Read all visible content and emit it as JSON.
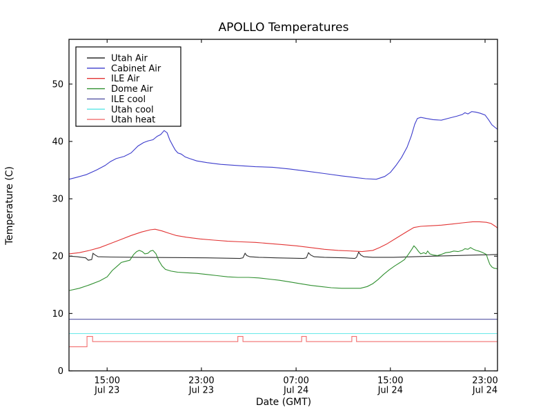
{
  "figure": {
    "background": "#ffffff",
    "spine_color": "#1a1a1a"
  },
  "chart_data": {
    "type": "line",
    "title": "APOLLO Temperatures",
    "xlabel": "Date (GMT)",
    "ylabel": "Temperature (C)",
    "ylim": [
      0,
      57.8
    ],
    "y_ticks": [
      0,
      10,
      20,
      30,
      40,
      50
    ],
    "grid": false,
    "legend_position": "upper left",
    "x_unit": "fraction of visible time span (approx 11:50 Jul 23 GMT to 23:50 Jul 24 GMT, ~36 hours)",
    "x_ticks": [
      {
        "pos": 0.089,
        "time": "15:00",
        "date": "Jul 23"
      },
      {
        "pos": 0.309,
        "time": "23:00",
        "date": "Jul 23"
      },
      {
        "pos": 0.53,
        "time": "07:00",
        "date": "Jul 24"
      },
      {
        "pos": 0.75,
        "time": "15:00",
        "date": "Jul 24"
      },
      {
        "pos": 0.971,
        "time": "23:00",
        "date": "Jul 24"
      }
    ],
    "series": [
      {
        "name": "Utah Air",
        "color": "#2b2b2b",
        "points": [
          [
            0,
            20.0
          ],
          [
            0.019,
            19.9
          ],
          [
            0.039,
            19.7
          ],
          [
            0.045,
            19.3
          ],
          [
            0.053,
            19.4
          ],
          [
            0.056,
            20.5
          ],
          [
            0.061,
            20.2
          ],
          [
            0.068,
            19.9
          ],
          [
            0.097,
            19.85
          ],
          [
            0.161,
            19.8
          ],
          [
            0.242,
            19.75
          ],
          [
            0.322,
            19.7
          ],
          [
            0.399,
            19.6
          ],
          [
            0.406,
            19.7
          ],
          [
            0.411,
            20.5
          ],
          [
            0.415,
            20.1
          ],
          [
            0.422,
            19.9
          ],
          [
            0.443,
            19.8
          ],
          [
            0.483,
            19.7
          ],
          [
            0.547,
            19.6
          ],
          [
            0.554,
            19.7
          ],
          [
            0.559,
            20.6
          ],
          [
            0.564,
            20.2
          ],
          [
            0.572,
            19.9
          ],
          [
            0.596,
            19.8
          ],
          [
            0.644,
            19.7
          ],
          [
            0.667,
            19.6
          ],
          [
            0.671,
            19.8
          ],
          [
            0.676,
            20.7
          ],
          [
            0.681,
            20.2
          ],
          [
            0.688,
            19.9
          ],
          [
            0.709,
            19.8
          ],
          [
            0.757,
            19.8
          ],
          [
            0.805,
            19.9
          ],
          [
            0.853,
            20.0
          ],
          [
            0.902,
            20.1
          ],
          [
            0.95,
            20.2
          ],
          [
            0.982,
            20.25
          ],
          [
            1,
            20.3
          ]
        ]
      },
      {
        "name": "Cabinet Air",
        "color": "#3b3bcc",
        "points": [
          [
            0,
            33.4
          ],
          [
            0.016,
            33.7
          ],
          [
            0.04,
            34.2
          ],
          [
            0.064,
            35.0
          ],
          [
            0.084,
            35.8
          ],
          [
            0.097,
            36.5
          ],
          [
            0.11,
            37.0
          ],
          [
            0.129,
            37.4
          ],
          [
            0.145,
            38.0
          ],
          [
            0.161,
            39.2
          ],
          [
            0.174,
            39.8
          ],
          [
            0.185,
            40.1
          ],
          [
            0.196,
            40.3
          ],
          [
            0.206,
            40.9
          ],
          [
            0.214,
            41.2
          ],
          [
            0.222,
            41.9
          ],
          [
            0.229,
            41.5
          ],
          [
            0.235,
            40.3
          ],
          [
            0.242,
            39.3
          ],
          [
            0.248,
            38.5
          ],
          [
            0.254,
            38.0
          ],
          [
            0.262,
            37.8
          ],
          [
            0.271,
            37.3
          ],
          [
            0.282,
            37.0
          ],
          [
            0.298,
            36.6
          ],
          [
            0.322,
            36.3
          ],
          [
            0.354,
            36.0
          ],
          [
            0.394,
            35.8
          ],
          [
            0.435,
            35.6
          ],
          [
            0.475,
            35.5
          ],
          [
            0.515,
            35.2
          ],
          [
            0.556,
            34.8
          ],
          [
            0.596,
            34.4
          ],
          [
            0.636,
            34.0
          ],
          [
            0.668,
            33.7
          ],
          [
            0.692,
            33.5
          ],
          [
            0.717,
            33.4
          ],
          [
            0.737,
            33.9
          ],
          [
            0.75,
            34.6
          ],
          [
            0.763,
            35.8
          ],
          [
            0.776,
            37.2
          ],
          [
            0.789,
            39.0
          ],
          [
            0.799,
            41.0
          ],
          [
            0.807,
            43.0
          ],
          [
            0.813,
            44.0
          ],
          [
            0.821,
            44.2
          ],
          [
            0.834,
            44.0
          ],
          [
            0.85,
            43.8
          ],
          [
            0.869,
            43.7
          ],
          [
            0.889,
            44.1
          ],
          [
            0.905,
            44.4
          ],
          [
            0.918,
            44.7
          ],
          [
            0.924,
            45.0
          ],
          [
            0.931,
            44.8
          ],
          [
            0.94,
            45.2
          ],
          [
            0.95,
            45.1
          ],
          [
            0.96,
            44.9
          ],
          [
            0.971,
            44.6
          ],
          [
            0.979,
            43.8
          ],
          [
            0.987,
            42.9
          ],
          [
            1,
            42.1
          ]
        ]
      },
      {
        "name": "ILE Air",
        "color": "#e23333",
        "points": [
          [
            0,
            20.4
          ],
          [
            0.024,
            20.6
          ],
          [
            0.048,
            21.0
          ],
          [
            0.072,
            21.5
          ],
          [
            0.097,
            22.2
          ],
          [
            0.121,
            22.9
          ],
          [
            0.145,
            23.6
          ],
          [
            0.169,
            24.2
          ],
          [
            0.19,
            24.6
          ],
          [
            0.201,
            24.7
          ],
          [
            0.217,
            24.4
          ],
          [
            0.233,
            24.0
          ],
          [
            0.25,
            23.6
          ],
          [
            0.274,
            23.3
          ],
          [
            0.306,
            23.0
          ],
          [
            0.338,
            22.8
          ],
          [
            0.37,
            22.6
          ],
          [
            0.403,
            22.5
          ],
          [
            0.435,
            22.4
          ],
          [
            0.467,
            22.2
          ],
          [
            0.499,
            22.0
          ],
          [
            0.531,
            21.8
          ],
          [
            0.564,
            21.5
          ],
          [
            0.596,
            21.2
          ],
          [
            0.628,
            21.0
          ],
          [
            0.66,
            20.9
          ],
          [
            0.684,
            20.8
          ],
          [
            0.709,
            21.0
          ],
          [
            0.725,
            21.5
          ],
          [
            0.741,
            22.1
          ],
          [
            0.765,
            23.2
          ],
          [
            0.789,
            24.3
          ],
          [
            0.805,
            25.0
          ],
          [
            0.821,
            25.2
          ],
          [
            0.845,
            25.3
          ],
          [
            0.869,
            25.4
          ],
          [
            0.894,
            25.6
          ],
          [
            0.918,
            25.8
          ],
          [
            0.942,
            26.0
          ],
          [
            0.958,
            26.0
          ],
          [
            0.974,
            25.9
          ],
          [
            0.985,
            25.7
          ],
          [
            0.995,
            25.2
          ],
          [
            1,
            24.9
          ]
        ]
      },
      {
        "name": "Dome Air",
        "color": "#2f8f2f",
        "points": [
          [
            0,
            14.0
          ],
          [
            0.024,
            14.4
          ],
          [
            0.048,
            15.0
          ],
          [
            0.072,
            15.7
          ],
          [
            0.089,
            16.4
          ],
          [
            0.101,
            17.5
          ],
          [
            0.113,
            18.3
          ],
          [
            0.122,
            18.9
          ],
          [
            0.132,
            19.1
          ],
          [
            0.142,
            19.3
          ],
          [
            0.151,
            20.3
          ],
          [
            0.158,
            20.8
          ],
          [
            0.164,
            21.0
          ],
          [
            0.171,
            20.8
          ],
          [
            0.177,
            20.4
          ],
          [
            0.184,
            20.5
          ],
          [
            0.19,
            20.9
          ],
          [
            0.196,
            21.0
          ],
          [
            0.203,
            20.4
          ],
          [
            0.209,
            19.3
          ],
          [
            0.217,
            18.3
          ],
          [
            0.225,
            17.7
          ],
          [
            0.238,
            17.4
          ],
          [
            0.254,
            17.2
          ],
          [
            0.274,
            17.1
          ],
          [
            0.298,
            17.0
          ],
          [
            0.322,
            16.8
          ],
          [
            0.346,
            16.6
          ],
          [
            0.37,
            16.4
          ],
          [
            0.394,
            16.3
          ],
          [
            0.419,
            16.3
          ],
          [
            0.443,
            16.2
          ],
          [
            0.467,
            16.0
          ],
          [
            0.491,
            15.8
          ],
          [
            0.515,
            15.5
          ],
          [
            0.539,
            15.2
          ],
          [
            0.564,
            14.9
          ],
          [
            0.588,
            14.7
          ],
          [
            0.612,
            14.5
          ],
          [
            0.636,
            14.4
          ],
          [
            0.66,
            14.4
          ],
          [
            0.68,
            14.4
          ],
          [
            0.696,
            14.7
          ],
          [
            0.709,
            15.2
          ],
          [
            0.721,
            15.9
          ],
          [
            0.734,
            16.8
          ],
          [
            0.747,
            17.6
          ],
          [
            0.76,
            18.3
          ],
          [
            0.773,
            18.9
          ],
          [
            0.783,
            19.4
          ],
          [
            0.792,
            20.3
          ],
          [
            0.8,
            21.2
          ],
          [
            0.805,
            21.8
          ],
          [
            0.81,
            21.4
          ],
          [
            0.816,
            20.8
          ],
          [
            0.821,
            20.4
          ],
          [
            0.828,
            20.6
          ],
          [
            0.833,
            20.4
          ],
          [
            0.837,
            20.9
          ],
          [
            0.842,
            20.4
          ],
          [
            0.85,
            20.2
          ],
          [
            0.86,
            20.1
          ],
          [
            0.869,
            20.3
          ],
          [
            0.879,
            20.6
          ],
          [
            0.889,
            20.7
          ],
          [
            0.898,
            20.9
          ],
          [
            0.908,
            20.8
          ],
          [
            0.918,
            21.0
          ],
          [
            0.924,
            21.3
          ],
          [
            0.931,
            21.2
          ],
          [
            0.937,
            21.5
          ],
          [
            0.944,
            21.2
          ],
          [
            0.95,
            21.0
          ],
          [
            0.956,
            20.9
          ],
          [
            0.963,
            20.7
          ],
          [
            0.969,
            20.5
          ],
          [
            0.974,
            20.3
          ],
          [
            0.977,
            19.6
          ],
          [
            0.982,
            18.6
          ],
          [
            0.987,
            18.1
          ],
          [
            0.992,
            17.9
          ],
          [
            1,
            17.8
          ]
        ]
      },
      {
        "name": "ILE cool",
        "color": "#5353a3",
        "points": [
          [
            0,
            9.0
          ],
          [
            1,
            9.0
          ]
        ]
      },
      {
        "name": "Utah cool",
        "color": "#66e8e8",
        "points": [
          [
            0,
            6.5
          ],
          [
            1,
            6.5
          ]
        ]
      },
      {
        "name": "Utah heat",
        "color": "#f26e6e",
        "points": [
          [
            0,
            4.2
          ],
          [
            0.042,
            4.2
          ],
          [
            0.042,
            6.0
          ],
          [
            0.055,
            6.0
          ],
          [
            0.055,
            5.1
          ],
          [
            0.394,
            5.1
          ],
          [
            0.394,
            6.0
          ],
          [
            0.406,
            6.0
          ],
          [
            0.406,
            5.1
          ],
          [
            0.543,
            5.1
          ],
          [
            0.543,
            6.0
          ],
          [
            0.554,
            6.0
          ],
          [
            0.554,
            5.1
          ],
          [
            0.66,
            5.1
          ],
          [
            0.66,
            6.0
          ],
          [
            0.671,
            6.0
          ],
          [
            0.671,
            5.1
          ],
          [
            1,
            5.1
          ]
        ]
      }
    ]
  }
}
